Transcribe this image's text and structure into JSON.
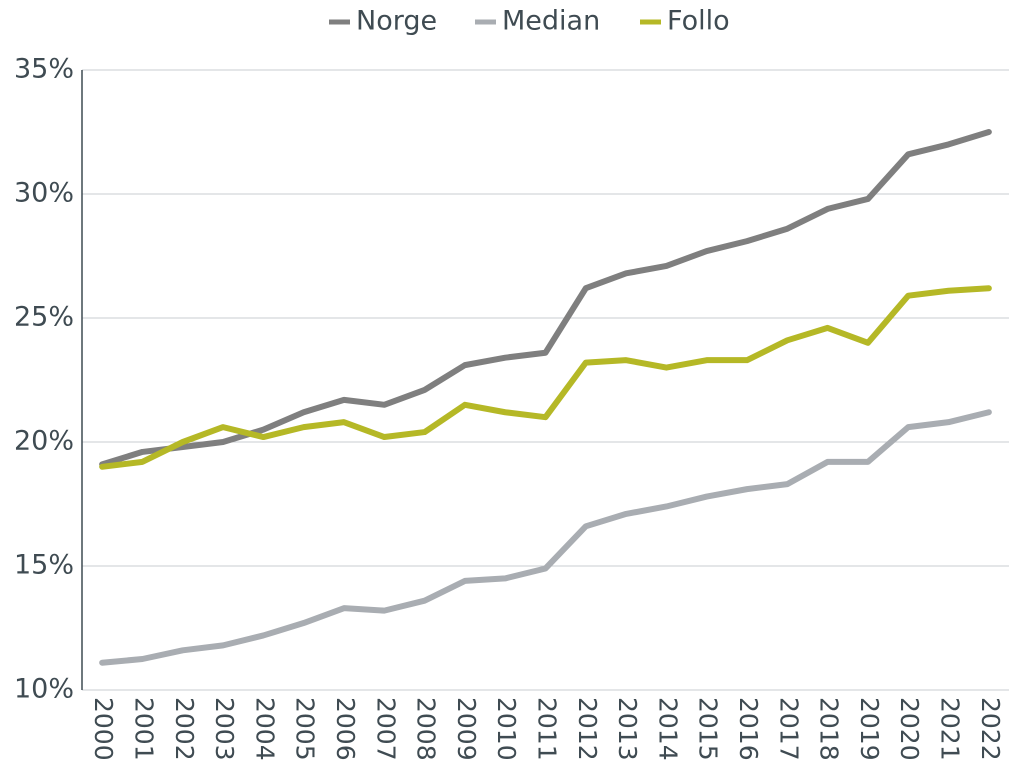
{
  "chart_data": {
    "type": "line",
    "categories": [
      "2000",
      "2001",
      "2002",
      "2003",
      "2004",
      "2005",
      "2006",
      "2007",
      "2008",
      "2009",
      "2010",
      "2011",
      "2012",
      "2013",
      "2014",
      "2015",
      "2016",
      "2017",
      "2018",
      "2019",
      "2020",
      "2021",
      "2022"
    ],
    "series": [
      {
        "name": "Norge",
        "color": "#7f7f7f",
        "values": [
          19.1,
          19.6,
          19.8,
          20.0,
          20.5,
          21.2,
          21.7,
          21.5,
          22.1,
          23.1,
          23.4,
          23.6,
          26.2,
          26.8,
          27.1,
          27.7,
          28.1,
          28.6,
          29.4,
          29.8,
          31.6,
          32.0,
          32.5
        ]
      },
      {
        "name": "Median",
        "color": "#a9adb2",
        "values": [
          11.1,
          11.25,
          11.6,
          11.8,
          12.2,
          12.7,
          13.3,
          13.2,
          13.6,
          14.4,
          14.5,
          14.9,
          16.6,
          17.1,
          17.4,
          17.8,
          18.1,
          18.3,
          19.2,
          19.2,
          20.6,
          20.8,
          21.2
        ]
      },
      {
        "name": "Follo",
        "color": "#b5b826",
        "values": [
          19.0,
          19.2,
          20.0,
          20.6,
          20.2,
          20.6,
          20.8,
          20.2,
          20.4,
          21.5,
          21.2,
          21.0,
          23.2,
          23.3,
          23.0,
          23.3,
          23.3,
          24.1,
          24.6,
          24.0,
          25.9,
          26.1,
          26.2
        ]
      }
    ],
    "ylim": [
      10,
      35
    ],
    "yticks": [
      {
        "value": 10,
        "label": "10%"
      },
      {
        "value": 15,
        "label": "15%"
      },
      {
        "value": 20,
        "label": "20%"
      },
      {
        "value": 25,
        "label": "25%"
      },
      {
        "value": 30,
        "label": "30%"
      },
      {
        "value": 35,
        "label": "35%"
      }
    ],
    "grid": true,
    "legend": "top"
  }
}
